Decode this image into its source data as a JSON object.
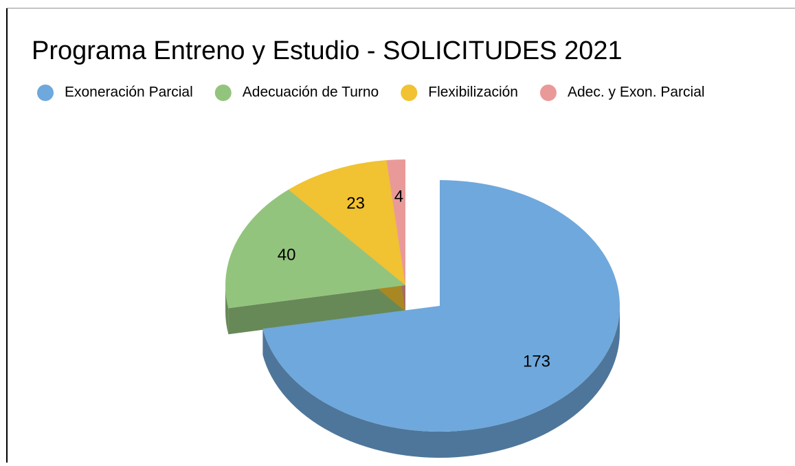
{
  "chart_data": {
    "type": "pie",
    "title": "Programa Entreno y Estudio - SOLICITUDES 2021",
    "categories": [
      "Exoneración Parcial",
      "Adecuación de Turno",
      "Flexibilización",
      "Adec. y Exon. Parcial"
    ],
    "values": [
      173,
      40,
      23,
      4
    ],
    "colors": [
      "#6fa8dc",
      "#93c47d",
      "#f1c232",
      "#ea9999"
    ]
  }
}
